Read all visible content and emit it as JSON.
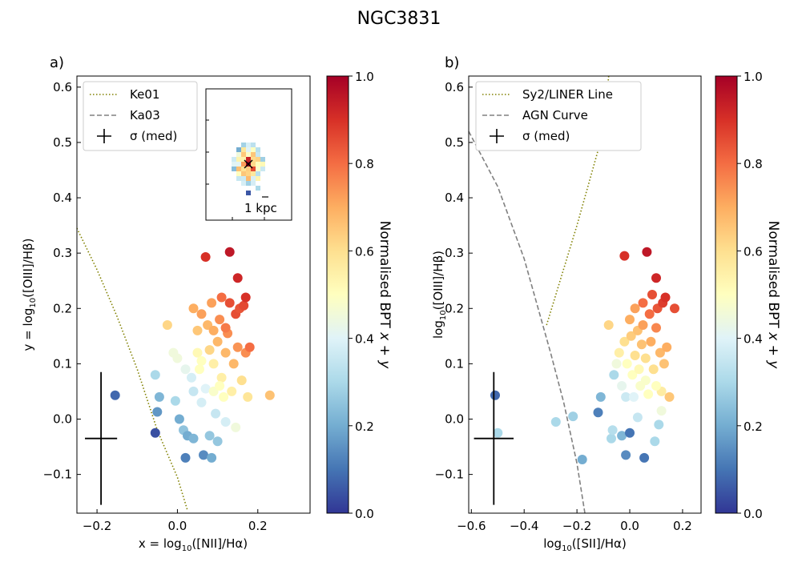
{
  "figure_title": "NGC3831",
  "colorbar": {
    "label": "Normalised BPT x + y",
    "range": [
      0,
      1
    ],
    "ticks": [
      0.0,
      0.2,
      0.4,
      0.6,
      0.8,
      1.0
    ],
    "tick_labels": [
      "0.0",
      "0.2",
      "0.4",
      "0.6",
      "0.8",
      "1.0"
    ]
  },
  "inset": {
    "scale_label": "1 kpc"
  },
  "chart_data": [
    {
      "type": "scatter",
      "panel_label": "a)",
      "xlabel": "x = log10([NII]/Hα)",
      "ylabel": "y = log10([OIII]/Hβ)",
      "xlim": [
        -0.25,
        0.33
      ],
      "ylim": [
        -0.17,
        0.62
      ],
      "xticks": [
        -0.2,
        0.0,
        0.2
      ],
      "xtick_labels": [
        "−0.2",
        "0.0",
        "0.2"
      ],
      "yticks": [
        -0.1,
        0.0,
        0.1,
        0.2,
        0.3,
        0.4,
        0.5,
        0.6
      ],
      "ytick_labels": [
        "−0.1",
        "0.0",
        "0.1",
        "0.2",
        "0.3",
        "0.4",
        "0.5",
        "0.6"
      ],
      "legend": [
        "Ke01",
        "Ka03",
        "σ (med)"
      ],
      "error_cross": {
        "x": -0.19,
        "y": -0.035,
        "dx": 0.04,
        "dy": 0.12
      },
      "curve_ke01": [
        [
          -0.25,
          0.345
        ],
        [
          -0.2,
          0.27
        ],
        [
          -0.15,
          0.185
        ],
        [
          -0.1,
          0.09
        ],
        [
          -0.05,
          -0.02
        ],
        [
          0.0,
          -0.105
        ],
        [
          0.025,
          -0.165
        ]
      ],
      "points": [
        [
          -0.155,
          0.043,
          0.08
        ],
        [
          -0.055,
          0.08,
          0.3
        ],
        [
          -0.05,
          0.013,
          0.16
        ],
        [
          -0.045,
          0.04,
          0.22
        ],
        [
          -0.055,
          -0.025,
          0.04
        ],
        [
          -0.025,
          0.17,
          0.62
        ],
        [
          -0.01,
          0.12,
          0.45
        ],
        [
          -0.005,
          0.033,
          0.3
        ],
        [
          0.005,
          0.0,
          0.2
        ],
        [
          0.0,
          0.11,
          0.45
        ],
        [
          0.02,
          0.09,
          0.42
        ],
        [
          0.015,
          -0.02,
          0.25
        ],
        [
          0.02,
          -0.07,
          0.12
        ],
        [
          0.025,
          -0.03,
          0.2
        ],
        [
          0.035,
          0.075,
          0.38
        ],
        [
          0.04,
          0.05,
          0.35
        ],
        [
          0.04,
          0.2,
          0.7
        ],
        [
          0.04,
          -0.035,
          0.22
        ],
        [
          0.05,
          0.12,
          0.52
        ],
        [
          0.05,
          0.16,
          0.65
        ],
        [
          0.055,
          0.09,
          0.5
        ],
        [
          0.06,
          0.19,
          0.72
        ],
        [
          0.06,
          0.03,
          0.38
        ],
        [
          0.065,
          -0.065,
          0.14
        ],
        [
          0.07,
          0.055,
          0.4
        ],
        [
          0.07,
          0.293,
          0.9
        ],
        [
          0.075,
          0.17,
          0.68
        ],
        [
          0.08,
          0.125,
          0.62
        ],
        [
          0.08,
          -0.03,
          0.26
        ],
        [
          0.085,
          -0.07,
          0.2
        ],
        [
          0.085,
          0.21,
          0.72
        ],
        [
          0.09,
          0.05,
          0.48
        ],
        [
          0.09,
          0.1,
          0.55
        ],
        [
          0.095,
          0.01,
          0.35
        ],
        [
          0.1,
          0.14,
          0.68
        ],
        [
          0.1,
          -0.04,
          0.26
        ],
        [
          0.105,
          0.18,
          0.75
        ],
        [
          0.11,
          0.22,
          0.8
        ],
        [
          0.11,
          0.075,
          0.55
        ],
        [
          0.115,
          0.04,
          0.5
        ],
        [
          0.12,
          0.12,
          0.68
        ],
        [
          0.12,
          -0.005,
          0.38
        ],
        [
          0.13,
          0.302,
          0.95
        ],
        [
          0.125,
          0.155,
          0.75
        ],
        [
          0.13,
          0.21,
          0.85
        ],
        [
          0.135,
          0.05,
          0.55
        ],
        [
          0.14,
          0.1,
          0.68
        ],
        [
          0.145,
          0.19,
          0.85
        ],
        [
          0.15,
          0.255,
          0.92
        ],
        [
          0.15,
          0.13,
          0.74
        ],
        [
          0.155,
          0.2,
          0.84
        ],
        [
          0.16,
          0.07,
          0.6
        ],
        [
          0.165,
          0.205,
          0.86
        ],
        [
          0.17,
          0.22,
          0.9
        ],
        [
          0.17,
          0.12,
          0.75
        ],
        [
          0.175,
          0.04,
          0.58
        ],
        [
          0.18,
          0.13,
          0.8
        ],
        [
          0.145,
          -0.015,
          0.45
        ],
        [
          0.06,
          0.105,
          0.5
        ],
        [
          0.09,
          0.16,
          0.7
        ],
        [
          0.105,
          0.06,
          0.5
        ],
        [
          0.12,
          0.165,
          0.78
        ],
        [
          0.23,
          0.043,
          0.66
        ]
      ]
    },
    {
      "type": "scatter",
      "panel_label": "b)",
      "xlabel": "log10([SII]/Hα)",
      "ylabel": "log10([OIII]/Hβ)",
      "xlim": [
        -0.61,
        0.27
      ],
      "ylim": [
        -0.17,
        0.62
      ],
      "xticks": [
        -0.6,
        -0.4,
        -0.2,
        0.0,
        0.2
      ],
      "xtick_labels": [
        "−0.6",
        "−0.4",
        "−0.2",
        "0.0",
        "0.2"
      ],
      "yticks": [
        -0.1,
        0.0,
        0.1,
        0.2,
        0.3,
        0.4,
        0.5,
        0.6
      ],
      "ytick_labels": [
        "−0.1",
        "0.0",
        "0.1",
        "0.2",
        "0.3",
        "0.4",
        "0.5",
        "0.6"
      ],
      "legend": [
        "Sy2/LINER Line",
        "AGN Curve",
        "σ (med)"
      ],
      "error_cross": {
        "x": -0.515,
        "y": -0.035,
        "dx": 0.075,
        "dy": 0.12
      },
      "curve_agn": [
        [
          -0.61,
          0.52
        ],
        [
          -0.5,
          0.42
        ],
        [
          -0.4,
          0.29
        ],
        [
          -0.3,
          0.12
        ],
        [
          -0.25,
          0.03
        ],
        [
          -0.2,
          -0.08
        ],
        [
          -0.17,
          -0.17
        ]
      ],
      "curve_sy2": [
        [
          -0.315,
          0.17
        ],
        [
          -0.2,
          0.35
        ],
        [
          -0.1,
          0.52
        ],
        [
          -0.08,
          0.62
        ]
      ],
      "points": [
        [
          -0.51,
          0.043,
          0.08
        ],
        [
          -0.5,
          -0.025,
          0.3
        ],
        [
          -0.28,
          -0.005,
          0.3
        ],
        [
          -0.215,
          0.005,
          0.28
        ],
        [
          -0.18,
          -0.073,
          0.2
        ],
        [
          -0.12,
          0.012,
          0.12
        ],
        [
          -0.11,
          0.04,
          0.22
        ],
        [
          -0.08,
          0.17,
          0.62
        ],
        [
          -0.07,
          -0.035,
          0.3
        ],
        [
          -0.06,
          0.08,
          0.3
        ],
        [
          -0.065,
          -0.02,
          0.32
        ],
        [
          -0.05,
          0.1,
          0.45
        ],
        [
          -0.04,
          0.12,
          0.55
        ],
        [
          -0.03,
          0.06,
          0.42
        ],
        [
          -0.03,
          -0.03,
          0.22
        ],
        [
          -0.02,
          0.295,
          0.9
        ],
        [
          -0.02,
          0.14,
          0.6
        ],
        [
          -0.015,
          0.04,
          0.36
        ],
        [
          -0.015,
          -0.065,
          0.14
        ],
        [
          -0.01,
          0.1,
          0.5
        ],
        [
          0.0,
          -0.025,
          0.1
        ],
        [
          0.0,
          0.18,
          0.7
        ],
        [
          0.005,
          0.15,
          0.64
        ],
        [
          0.01,
          0.08,
          0.5
        ],
        [
          0.015,
          0.04,
          0.4
        ],
        [
          0.02,
          0.115,
          0.6
        ],
        [
          0.02,
          0.2,
          0.72
        ],
        [
          0.03,
          0.16,
          0.66
        ],
        [
          0.03,
          0.003,
          0.35
        ],
        [
          0.035,
          0.09,
          0.52
        ],
        [
          0.04,
          0.06,
          0.48
        ],
        [
          0.045,
          0.135,
          0.66
        ],
        [
          0.05,
          0.17,
          0.72
        ],
        [
          0.05,
          0.21,
          0.8
        ],
        [
          0.055,
          -0.07,
          0.1
        ],
        [
          0.06,
          0.11,
          0.6
        ],
        [
          0.065,
          0.302,
          0.95
        ],
        [
          0.07,
          0.045,
          0.5
        ],
        [
          0.075,
          0.19,
          0.8
        ],
        [
          0.08,
          0.14,
          0.7
        ],
        [
          0.085,
          0.225,
          0.85
        ],
        [
          0.09,
          0.09,
          0.6
        ],
        [
          0.095,
          -0.04,
          0.3
        ],
        [
          0.1,
          0.255,
          0.92
        ],
        [
          0.1,
          0.165,
          0.76
        ],
        [
          0.105,
          0.2,
          0.84
        ],
        [
          0.11,
          -0.01,
          0.3
        ],
        [
          0.115,
          0.12,
          0.68
        ],
        [
          0.12,
          0.05,
          0.56
        ],
        [
          0.125,
          0.21,
          0.88
        ],
        [
          0.13,
          0.1,
          0.66
        ],
        [
          0.135,
          0.22,
          0.9
        ],
        [
          0.14,
          0.13,
          0.7
        ],
        [
          0.15,
          0.04,
          0.65
        ],
        [
          0.17,
          0.2,
          0.85
        ],
        [
          0.06,
          0.07,
          0.48
        ],
        [
          0.1,
          0.06,
          0.5
        ],
        [
          0.12,
          0.015,
          0.45
        ]
      ]
    }
  ]
}
